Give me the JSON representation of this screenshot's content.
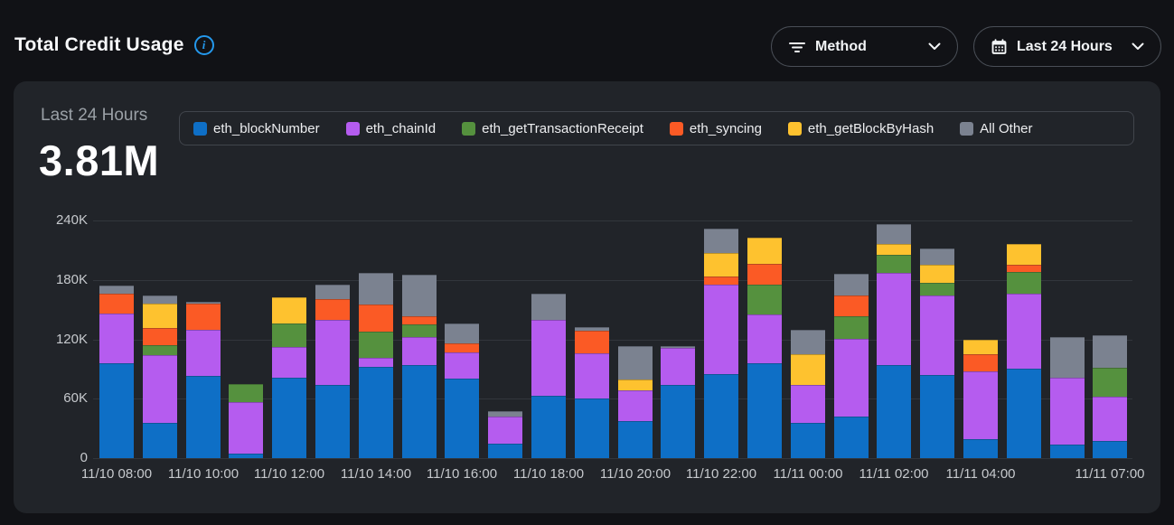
{
  "header": {
    "title": "Total Credit Usage",
    "info_icon": "info-circle-icon",
    "filters": [
      {
        "label": "Method",
        "icon": "filter-icon",
        "chevron": "chevron-down-icon"
      },
      {
        "label": "Last 24 Hours",
        "icon": "calendar-icon",
        "chevron": "chevron-down-icon"
      }
    ]
  },
  "card": {
    "period_label": "Last 24 Hours",
    "total_value": "3.81M"
  },
  "colors": {
    "page_bg": "#111216",
    "card_bg": "#212429",
    "accent_blue": "#2498ec",
    "gridline": "#32363c"
  },
  "chart_data": {
    "type": "bar",
    "stacked": true,
    "title": "Total Credit Usage – Last 24 Hours",
    "xlabel": "",
    "ylabel": "",
    "units": "thousands of credits (K)",
    "ylim": [
      0,
      240
    ],
    "ytick_values": [
      0,
      60,
      120,
      180,
      240
    ],
    "ytick_labels": [
      "0",
      "60K",
      "120K",
      "180K",
      "240K"
    ],
    "grid": "horizontal",
    "legend_position": "top",
    "x": [
      "11/10 08:00",
      "11/10 09:00",
      "11/10 10:00",
      "11/10 11:00",
      "11/10 12:00",
      "11/10 13:00",
      "11/10 14:00",
      "11/10 15:00",
      "11/10 16:00",
      "11/10 17:00",
      "11/10 18:00",
      "11/10 19:00",
      "11/10 20:00",
      "11/10 21:00",
      "11/10 22:00",
      "11/10 23:00",
      "11/11 00:00",
      "11/11 01:00",
      "11/11 02:00",
      "11/11 03:00",
      "11/11 04:00",
      "11/11 05:00",
      "11/11 06:00",
      "11/11 07:00"
    ],
    "xtick_indices": [
      0,
      2,
      4,
      6,
      8,
      10,
      12,
      14,
      16,
      18,
      20,
      23
    ],
    "xtick_labels": [
      "11/10 08:00",
      "11/10 10:00",
      "11/10 12:00",
      "11/10 14:00",
      "11/10 16:00",
      "11/10 18:00",
      "11/10 20:00",
      "11/10 22:00",
      "11/11 00:00",
      "11/11 02:00",
      "11/11 04:00",
      "11/11 07:00"
    ],
    "series": [
      {
        "name": "eth_blockNumber",
        "color": "#0e6fc6",
        "values": [
          96,
          36,
          83,
          5,
          81,
          74,
          92,
          94,
          80,
          15,
          63,
          60,
          37,
          74,
          85,
          96,
          36,
          42,
          94,
          84,
          19,
          90,
          14,
          17
        ]
      },
      {
        "name": "eth_chainId",
        "color": "#b55cef",
        "values": [
          50,
          68,
          47,
          52,
          31,
          66,
          9,
          28,
          27,
          27,
          77,
          46,
          31,
          37,
          90,
          49,
          38,
          78,
          93,
          80,
          69,
          76,
          67,
          45
        ]
      },
      {
        "name": "eth_getTransactionReceipt",
        "color": "#55913e",
        "values": [
          0,
          10,
          0,
          18,
          24,
          0,
          27,
          13,
          0,
          0,
          0,
          0,
          0,
          0,
          0,
          30,
          0,
          23,
          18,
          13,
          0,
          22,
          0,
          29
        ]
      },
      {
        "name": "eth_syncing",
        "color": "#fb5a25",
        "values": [
          20,
          17,
          26,
          0,
          0,
          21,
          27,
          8,
          9,
          0,
          0,
          23,
          0,
          0,
          8,
          21,
          0,
          21,
          0,
          0,
          17,
          7,
          0,
          0
        ]
      },
      {
        "name": "eth_getBlockByHash",
        "color": "#fec22f",
        "values": [
          0,
          25,
          0,
          0,
          26,
          0,
          0,
          0,
          0,
          0,
          0,
          0,
          11,
          0,
          24,
          27,
          31,
          0,
          11,
          18,
          15,
          21,
          0,
          0
        ]
      },
      {
        "name": "All Other",
        "color": "#7b8290",
        "values": [
          8,
          8,
          2,
          0,
          0,
          14,
          32,
          42,
          20,
          5,
          26,
          3,
          34,
          2,
          25,
          0,
          25,
          22,
          20,
          17,
          0,
          0,
          41,
          33
        ]
      }
    ]
  }
}
